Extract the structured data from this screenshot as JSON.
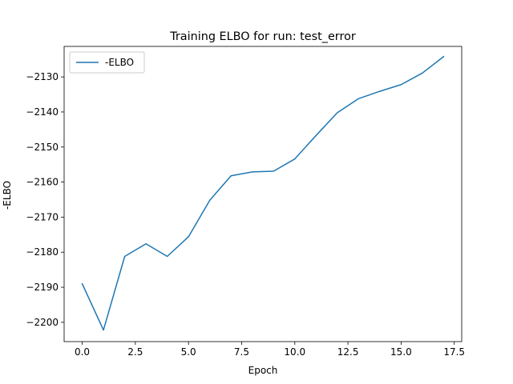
{
  "chart_data": {
    "type": "line",
    "title": "Training ELBO for run: test_error",
    "xlabel": "Epoch",
    "ylabel": "-ELBO",
    "xlim": [
      -0.85,
      17.85
    ],
    "ylim": [
      -2205.5,
      -2121.3
    ],
    "xticks": [
      0.0,
      2.5,
      5.0,
      7.5,
      10.0,
      12.5,
      15.0,
      17.5
    ],
    "xtick_labels": [
      "0.0",
      "2.5",
      "5.0",
      "7.5",
      "10.0",
      "12.5",
      "15.0",
      "17.5"
    ],
    "yticks": [
      -2200,
      -2190,
      -2180,
      -2170,
      -2160,
      -2150,
      -2140,
      -2130
    ],
    "ytick_labels": [
      "−2200",
      "−2190",
      "−2180",
      "−2170",
      "−2160",
      "−2150",
      "−2140",
      "−2130"
    ],
    "grid": false,
    "legend_position": "top-left",
    "series": [
      {
        "name": "-ELBO",
        "color": "#1f77b4",
        "x": [
          0,
          1,
          2,
          3,
          4,
          5,
          6,
          7,
          8,
          9,
          10,
          11,
          12,
          13,
          14,
          15,
          16,
          17
        ],
        "y": [
          -2189.0,
          -2202.2,
          -2181.2,
          -2177.6,
          -2181.2,
          -2175.6,
          -2165.2,
          -2158.2,
          -2157.1,
          -2156.9,
          -2153.4,
          -2146.7,
          -2140.2,
          -2136.2,
          -2134.1,
          -2132.2,
          -2128.9,
          -2124.2
        ]
      }
    ]
  }
}
